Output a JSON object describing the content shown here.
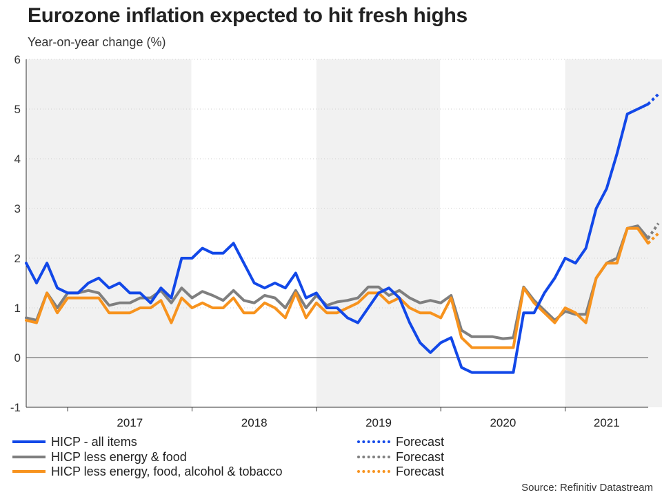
{
  "title": "Eurozone inflation expected to hit fresh highs",
  "subtitle": "Year-on-year change (%)",
  "source": "Source: Refinitiv Datastream",
  "colors": {
    "hicp": "#1248e8",
    "core": "#7f7f7f",
    "core_alc": "#f7931e",
    "band": "#f1f1f1"
  },
  "legend": {
    "hicp": "HICP - all items",
    "core": "HICP less energy & food",
    "core_alc": "HICP less energy, food, alcohol & tobacco",
    "forecast_hicp": "Forecast",
    "forecast_core": "Forecast",
    "forecast_core_alc": "Forecast"
  },
  "chart_data": {
    "type": "line",
    "title": "Eurozone inflation expected to hit fresh highs",
    "ylabel": "Year-on-year change (%)",
    "ylim": [
      -1,
      6
    ],
    "yticks": [
      "6",
      "5",
      "4",
      "3",
      "2",
      "1",
      "0",
      "-1"
    ],
    "x_start": "2016-09",
    "x_end": "2022-02",
    "years": [
      "2017",
      "2018",
      "2019",
      "2020",
      "2021"
    ],
    "series": [
      {
        "name": "HICP - all items",
        "style": "solid",
        "values": [
          1.9,
          1.5,
          1.9,
          1.4,
          1.3,
          1.3,
          1.5,
          1.6,
          1.4,
          1.5,
          1.3,
          1.3,
          1.1,
          1.4,
          1.2,
          2.0,
          2.0,
          2.2,
          2.1,
          2.1,
          2.3,
          1.9,
          1.5,
          1.4,
          1.5,
          1.4,
          1.7,
          1.2,
          1.3,
          1.0,
          1.0,
          0.8,
          0.7,
          1.0,
          1.3,
          1.4,
          1.2,
          0.7,
          0.3,
          0.1,
          0.3,
          0.4,
          -0.2,
          -0.3,
          -0.3,
          -0.3,
          -0.3,
          -0.3,
          0.9,
          0.9,
          1.3,
          1.6,
          2.0,
          1.9,
          2.2,
          3.0,
          3.4,
          4.1,
          4.9,
          5.0,
          5.1
        ]
      },
      {
        "name": "HICP less energy & food",
        "style": "solid",
        "values": [
          0.8,
          0.75,
          1.3,
          1.0,
          1.3,
          1.3,
          1.35,
          1.3,
          1.05,
          1.1,
          1.1,
          1.2,
          1.2,
          1.35,
          1.1,
          1.4,
          1.2,
          1.33,
          1.25,
          1.15,
          1.35,
          1.15,
          1.1,
          1.25,
          1.2,
          1.0,
          1.35,
          1.0,
          1.25,
          1.05,
          1.12,
          1.15,
          1.2,
          1.42,
          1.42,
          1.25,
          1.35,
          1.2,
          1.1,
          1.15,
          1.1,
          1.25,
          0.55,
          0.42,
          0.42,
          0.42,
          0.38,
          0.4,
          1.42,
          1.15,
          0.95,
          0.75,
          0.93,
          0.87,
          0.87,
          1.6,
          1.9,
          2.0,
          2.6,
          2.65,
          2.4
        ]
      },
      {
        "name": "HICP less energy, food, alcohol & tobacco",
        "style": "solid",
        "values": [
          0.75,
          0.7,
          1.3,
          0.9,
          1.2,
          1.2,
          1.2,
          1.2,
          0.9,
          0.9,
          0.9,
          1.0,
          1.0,
          1.15,
          0.7,
          1.2,
          1.0,
          1.1,
          1.0,
          1.0,
          1.2,
          0.9,
          0.9,
          1.1,
          1.0,
          0.8,
          1.3,
          0.8,
          1.1,
          0.9,
          0.9,
          1.0,
          1.1,
          1.3,
          1.3,
          1.1,
          1.2,
          1.0,
          0.9,
          0.9,
          0.8,
          1.2,
          0.4,
          0.2,
          0.2,
          0.2,
          0.2,
          0.2,
          1.4,
          1.1,
          0.9,
          0.7,
          1.0,
          0.9,
          0.7,
          1.6,
          1.9,
          1.9,
          2.6,
          2.6,
          2.3
        ]
      },
      {
        "name": "Forecast (HICP - all items)",
        "style": "dotted",
        "values": [
          5.1,
          5.3
        ]
      },
      {
        "name": "Forecast (HICP less energy & food)",
        "style": "dotted",
        "values": [
          2.4,
          2.7
        ]
      },
      {
        "name": "Forecast (HICP less energy, food, alcohol & tobacco)",
        "style": "dotted",
        "values": [
          2.3,
          2.5
        ]
      }
    ]
  }
}
